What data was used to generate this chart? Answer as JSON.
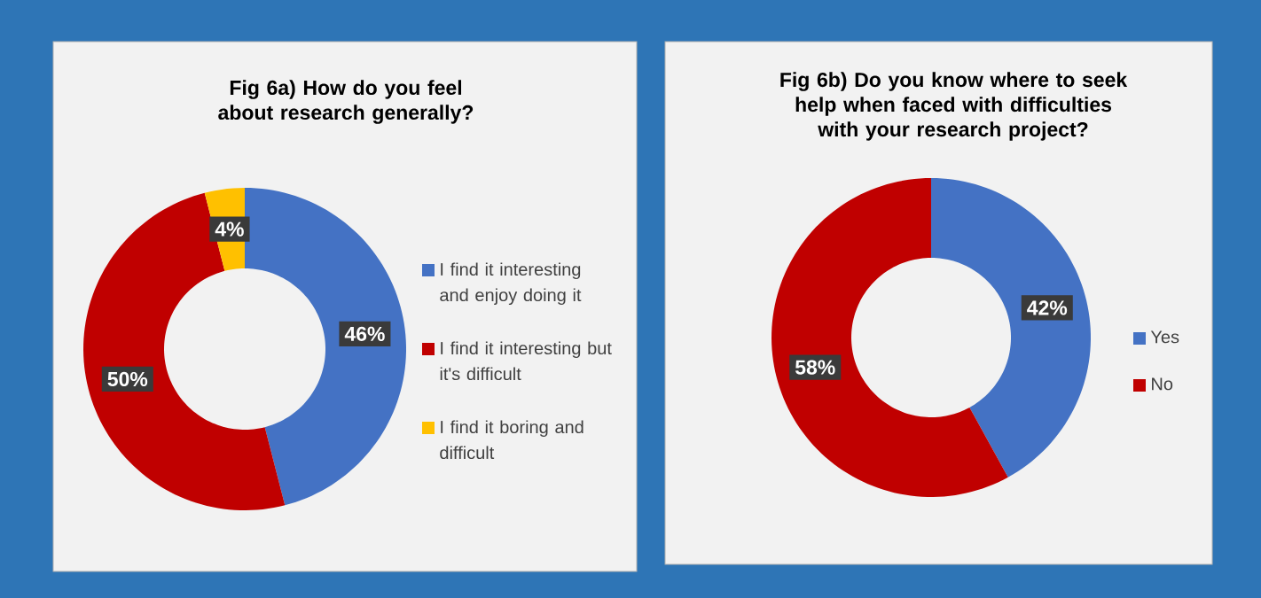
{
  "chart_data": [
    {
      "type": "donut",
      "title": "Fig 6a) How do you feel about research generally?",
      "categories": [
        "I find it interesting and enjoy doing it",
        "I find it interesting but it's difficult",
        "I find it boring and difficult"
      ],
      "values": [
        46,
        50,
        4
      ],
      "colors": [
        "#4472c4",
        "#c00000",
        "#ffc000"
      ],
      "value_labels": [
        "46%",
        "50%",
        "4%"
      ],
      "legend": "right"
    },
    {
      "type": "donut",
      "title": "Fig 6b) Do you know where to seek help when faced with difficulties with your research project?",
      "categories": [
        "Yes",
        "No"
      ],
      "values": [
        42,
        58
      ],
      "colors": [
        "#4472c4",
        "#c00000"
      ],
      "value_labels": [
        "42%",
        "58%"
      ],
      "legend": "right"
    }
  ]
}
